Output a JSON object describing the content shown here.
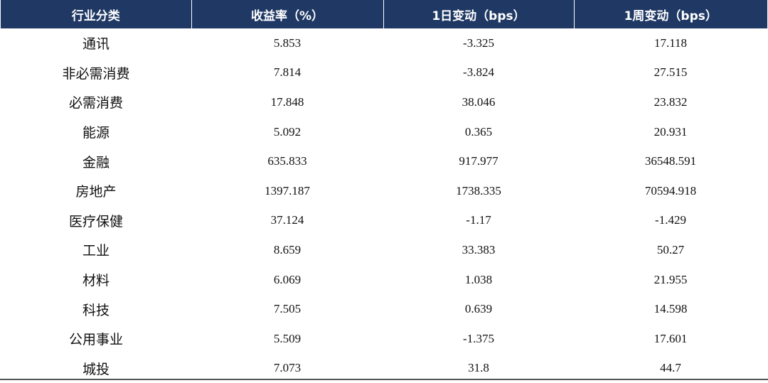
{
  "table": {
    "headers": [
      "行业分类",
      "收益率（%）",
      "1日变动（bps）",
      "1周变动（bps）"
    ],
    "rows": [
      [
        "通讯",
        "5.853",
        "-3.325",
        "17.118"
      ],
      [
        "非必需消费",
        "7.814",
        "-3.824",
        "27.515"
      ],
      [
        "必需消费",
        "17.848",
        "38.046",
        "23.832"
      ],
      [
        "能源",
        "5.092",
        "0.365",
        "20.931"
      ],
      [
        "金融",
        "635.833",
        "917.977",
        "36548.591"
      ],
      [
        "房地产",
        "1397.187",
        "1738.335",
        "70594.918"
      ],
      [
        "医疗保健",
        "37.124",
        "-1.17",
        "-1.429"
      ],
      [
        "工业",
        "8.659",
        "33.383",
        "50.27"
      ],
      [
        "材料",
        "6.069",
        "1.038",
        "21.955"
      ],
      [
        "科技",
        "7.505",
        "0.639",
        "14.598"
      ],
      [
        "公用事业",
        "5.509",
        "-1.375",
        "17.601"
      ],
      [
        "城投",
        "7.073",
        "31.8",
        "44.7"
      ]
    ]
  },
  "colors": {
    "header_bg": "#1f3864",
    "header_text": "#ffffff",
    "rule": "#555555"
  }
}
